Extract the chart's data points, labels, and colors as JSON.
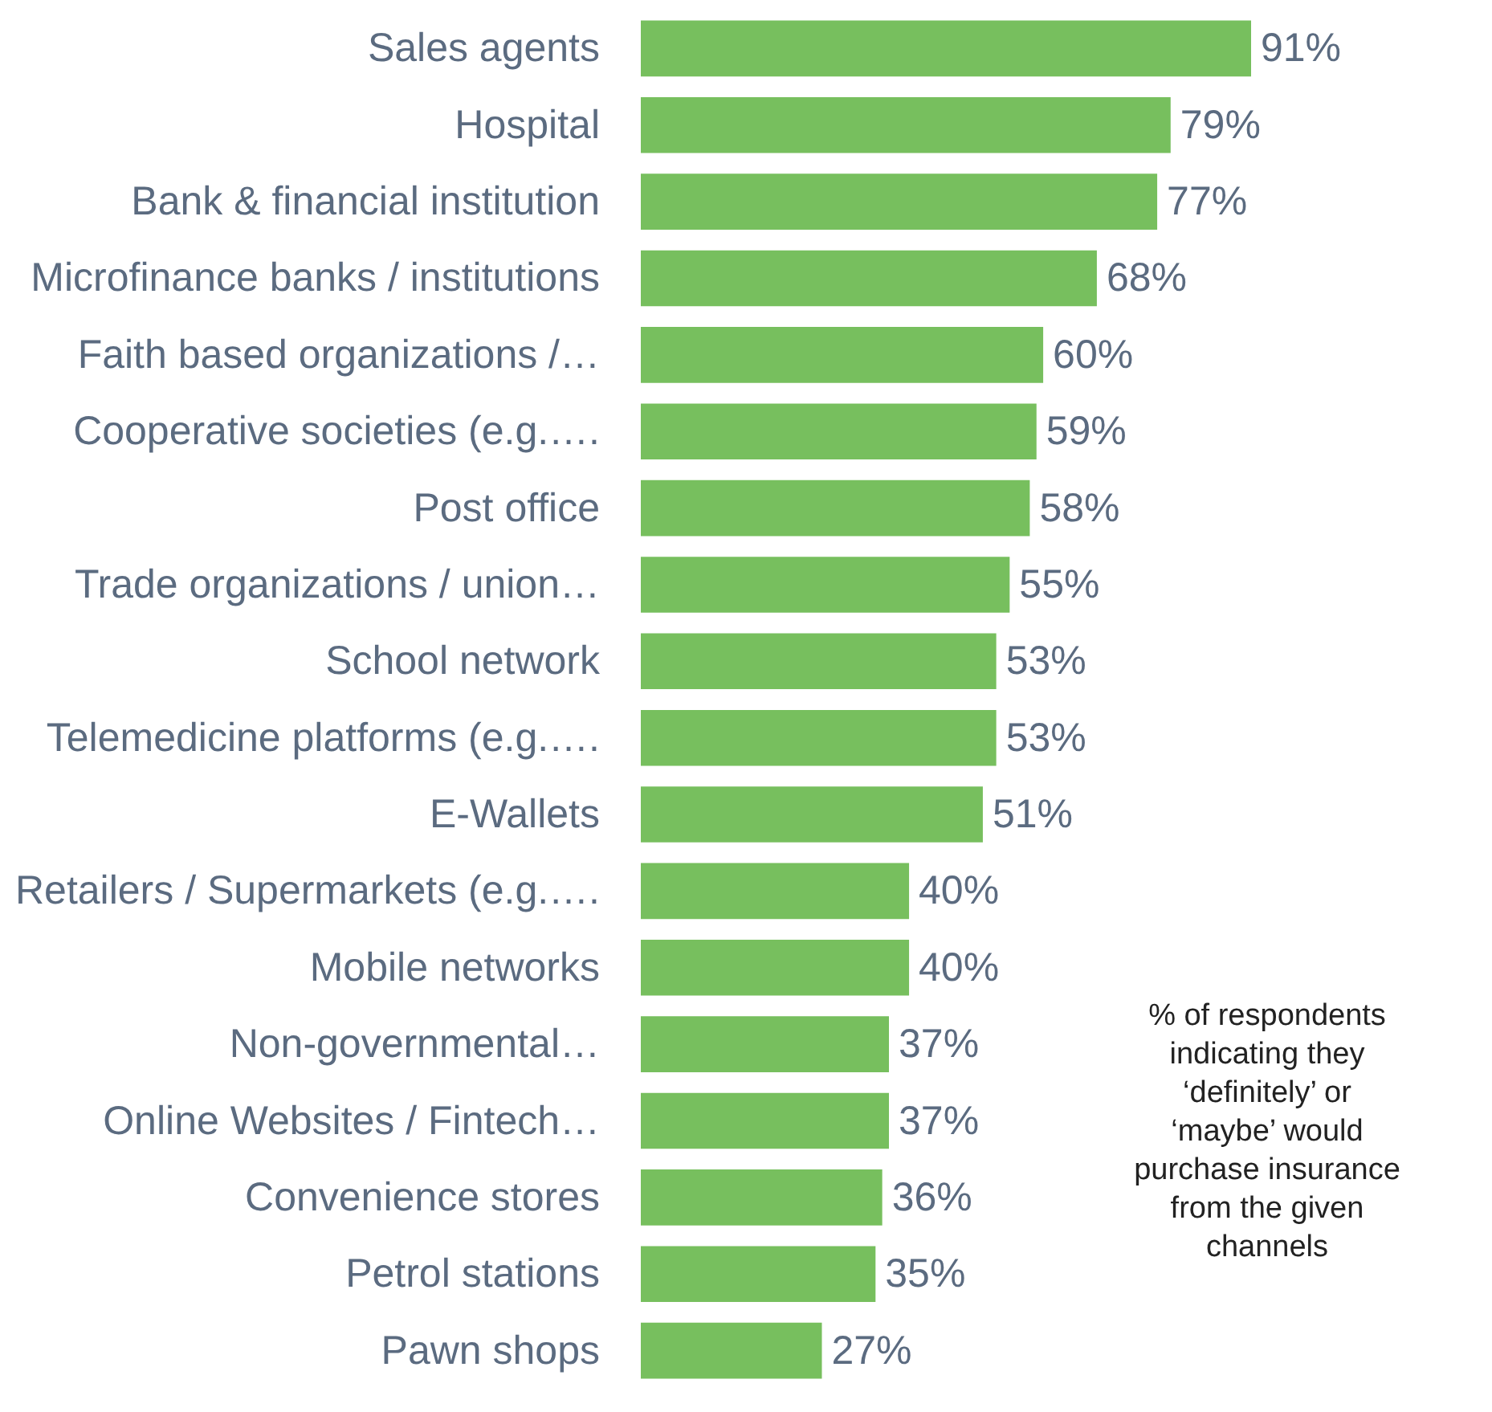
{
  "chart_data": {
    "type": "bar",
    "orientation": "horizontal",
    "categories": [
      "Sales agents",
      "Hospital",
      "Bank & financial institution",
      "Microfinance banks / institutions",
      "Faith based organizations /…",
      "Cooperative societies (e.g.….",
      "Post office",
      "Trade organizations / union…",
      "School network",
      "Telemedicine platforms (e.g.….",
      "E-Wallets",
      "Retailers / Supermarkets (e.g.….",
      "Mobile networks",
      "Non-governmental…",
      "Online Websites / Fintech…",
      "Convenience stores",
      "Petrol stations",
      "Pawn shops"
    ],
    "values": [
      91,
      79,
      77,
      68,
      60,
      59,
      58,
      55,
      53,
      53,
      51,
      40,
      40,
      37,
      37,
      36,
      35,
      27
    ],
    "color": "#77bf5e",
    "value_labels": [
      "91%",
      "79%",
      "77%",
      "68%",
      "60%",
      "59%",
      "58%",
      "55%",
      "53%",
      "53%",
      "51%",
      "40%",
      "40%",
      "37%",
      "37%",
      "36%",
      "35%",
      "27%"
    ],
    "annotations": [
      "% of respondents indicating they ‘definitely’ or ‘maybe’ would purchase insurance from the given channels"
    ]
  }
}
